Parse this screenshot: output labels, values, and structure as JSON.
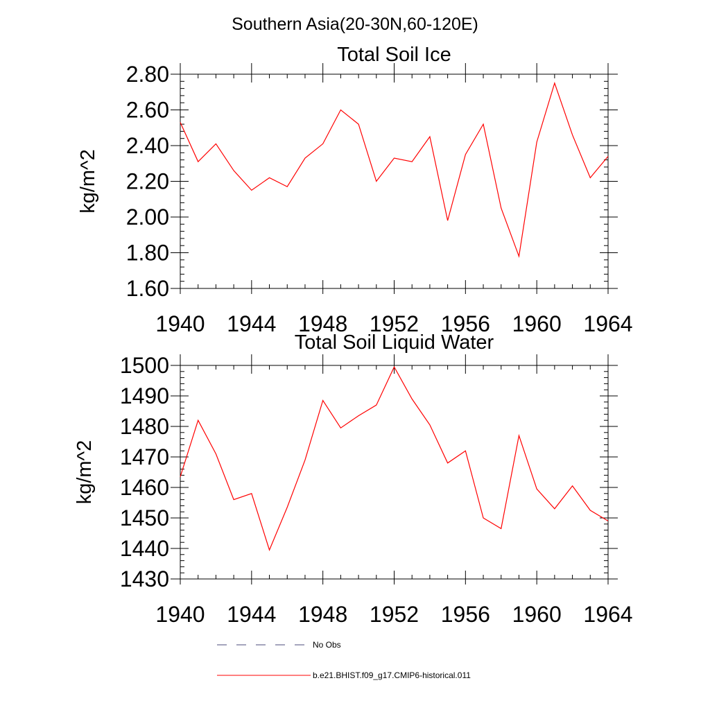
{
  "suptitle": "Southern Asia(20-30N,60-120E)",
  "chart_data": [
    {
      "type": "line",
      "title": "Total Soil Ice",
      "ylabel": "kg/m^2",
      "xlim": [
        1940,
        1964
      ],
      "ylim": [
        1.6,
        2.8
      ],
      "xticks": [
        "1940",
        "1944",
        "1948",
        "1952",
        "1956",
        "1960",
        "1964"
      ],
      "yticks": [
        "1.60",
        "1.80",
        "2.00",
        "2.20",
        "2.40",
        "2.60",
        "2.80"
      ],
      "x": [
        1940,
        1941,
        1942,
        1943,
        1944,
        1945,
        1946,
        1947,
        1948,
        1949,
        1950,
        1951,
        1952,
        1953,
        1954,
        1955,
        1956,
        1957,
        1958,
        1959,
        1960,
        1961,
        1962,
        1963,
        1964
      ],
      "series": [
        {
          "name": "b.e21.BHIST.f09_g17.CMIP6-historical.011",
          "color": "#ff0000",
          "values": [
            2.53,
            2.31,
            2.41,
            2.26,
            2.15,
            2.22,
            2.17,
            2.33,
            2.41,
            2.6,
            2.52,
            2.2,
            2.33,
            2.31,
            2.45,
            1.98,
            2.35,
            2.52,
            2.05,
            1.78,
            2.42,
            2.75,
            2.46,
            2.22,
            2.34
          ]
        }
      ]
    },
    {
      "type": "line",
      "title": "Total Soil Liquid Water",
      "ylabel": "kg/m^2",
      "xlim": [
        1940,
        1964
      ],
      "ylim": [
        1430,
        1500
      ],
      "xticks": [
        "1940",
        "1944",
        "1948",
        "1952",
        "1956",
        "1960",
        "1964"
      ],
      "yticks": [
        "1430",
        "1440",
        "1450",
        "1460",
        "1470",
        "1480",
        "1490",
        "1500"
      ],
      "x": [
        1940,
        1941,
        1942,
        1943,
        1944,
        1945,
        1946,
        1947,
        1948,
        1949,
        1950,
        1951,
        1952,
        1953,
        1954,
        1955,
        1956,
        1957,
        1958,
        1959,
        1960,
        1961,
        1962,
        1963,
        1964
      ],
      "series": [
        {
          "name": "b.e21.BHIST.f09_g17.CMIP6-historical.011",
          "color": "#ff0000",
          "values": [
            1463.5,
            1482,
            1471,
            1456,
            1458,
            1439.5,
            1453.5,
            1469,
            1488.5,
            1479.5,
            1483.5,
            1487,
            1499.5,
            1489,
            1480.5,
            1468,
            1472,
            1450,
            1446.5,
            1477,
            1459.5,
            1453,
            1460.5,
            1452.5,
            1449
          ]
        }
      ]
    }
  ],
  "legend": [
    {
      "label": "No Obs",
      "style": "dashed",
      "color": "#4a4a7a"
    },
    {
      "label": "b.e21.BHIST.f09_g17.CMIP6-historical.011",
      "style": "solid",
      "color": "#ff0000"
    }
  ]
}
